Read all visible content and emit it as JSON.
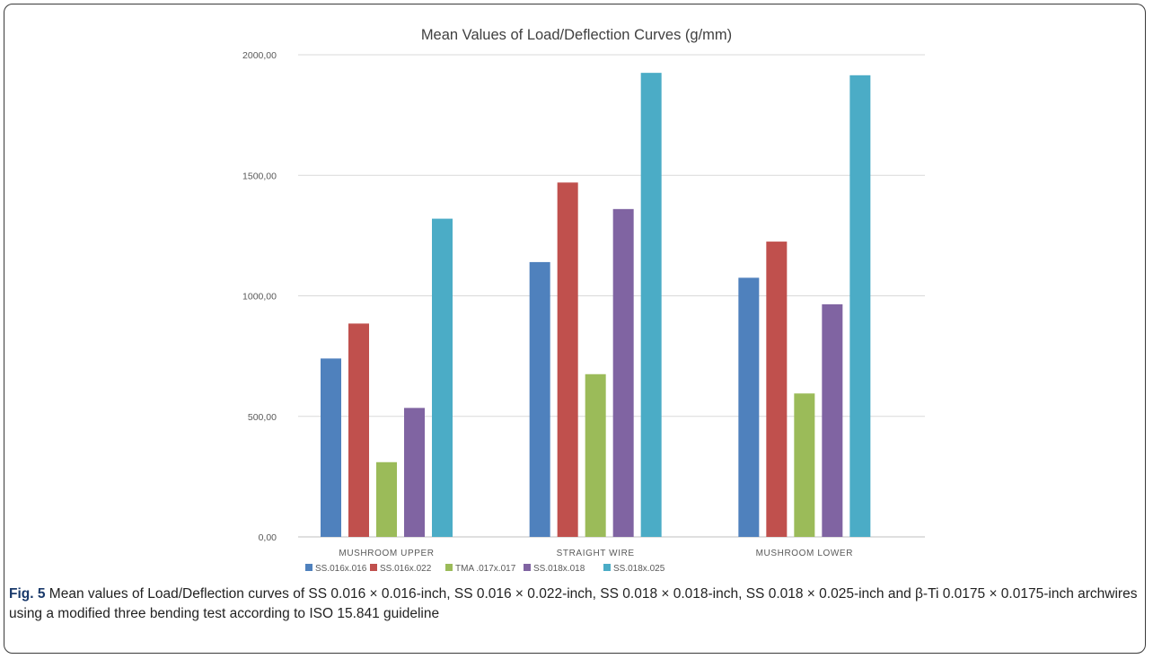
{
  "chart_data": {
    "type": "bar",
    "title": "Mean Values of Load/Deflection Curves (g/mm)",
    "xlabel": "",
    "ylabel": "",
    "categories": [
      "MUSHROOM UPPER",
      "STRAIGHT WIRE",
      "MUSHROOM LOWER"
    ],
    "ylim": [
      0,
      2000
    ],
    "yticks": [
      "0,00",
      "500,00",
      "1000,00",
      "1500,00",
      "2000,00"
    ],
    "grid": true,
    "legend_position": "bottom",
    "series": [
      {
        "name": "SS.016x.016",
        "color": "#4f81bd",
        "values": [
          740,
          1140,
          1075
        ]
      },
      {
        "name": "SS.016x.022",
        "color": "#c0504d",
        "values": [
          885,
          1470,
          1225
        ]
      },
      {
        "name": "TMA .017x.017",
        "color": "#9bbb59",
        "values": [
          310,
          675,
          595
        ]
      },
      {
        "name": "SS.018x.018",
        "color": "#8064a2",
        "values": [
          535,
          1360,
          965
        ]
      },
      {
        "name": "SS.018x.025",
        "color": "#4bacc6",
        "values": [
          1320,
          1925,
          1915
        ]
      }
    ]
  },
  "caption": {
    "label": "Fig. 5",
    "text": " Mean values of Load/Deflection curves of SS 0.016 × 0.016-inch, SS 0.016 × 0.022-inch, SS 0.018 × 0.018-inch, SS 0.018 × 0.025-inch and β-Ti 0.0175 × 0.0175-inch archwires using a modified three bending test according to ISO 15.841 guideline"
  }
}
